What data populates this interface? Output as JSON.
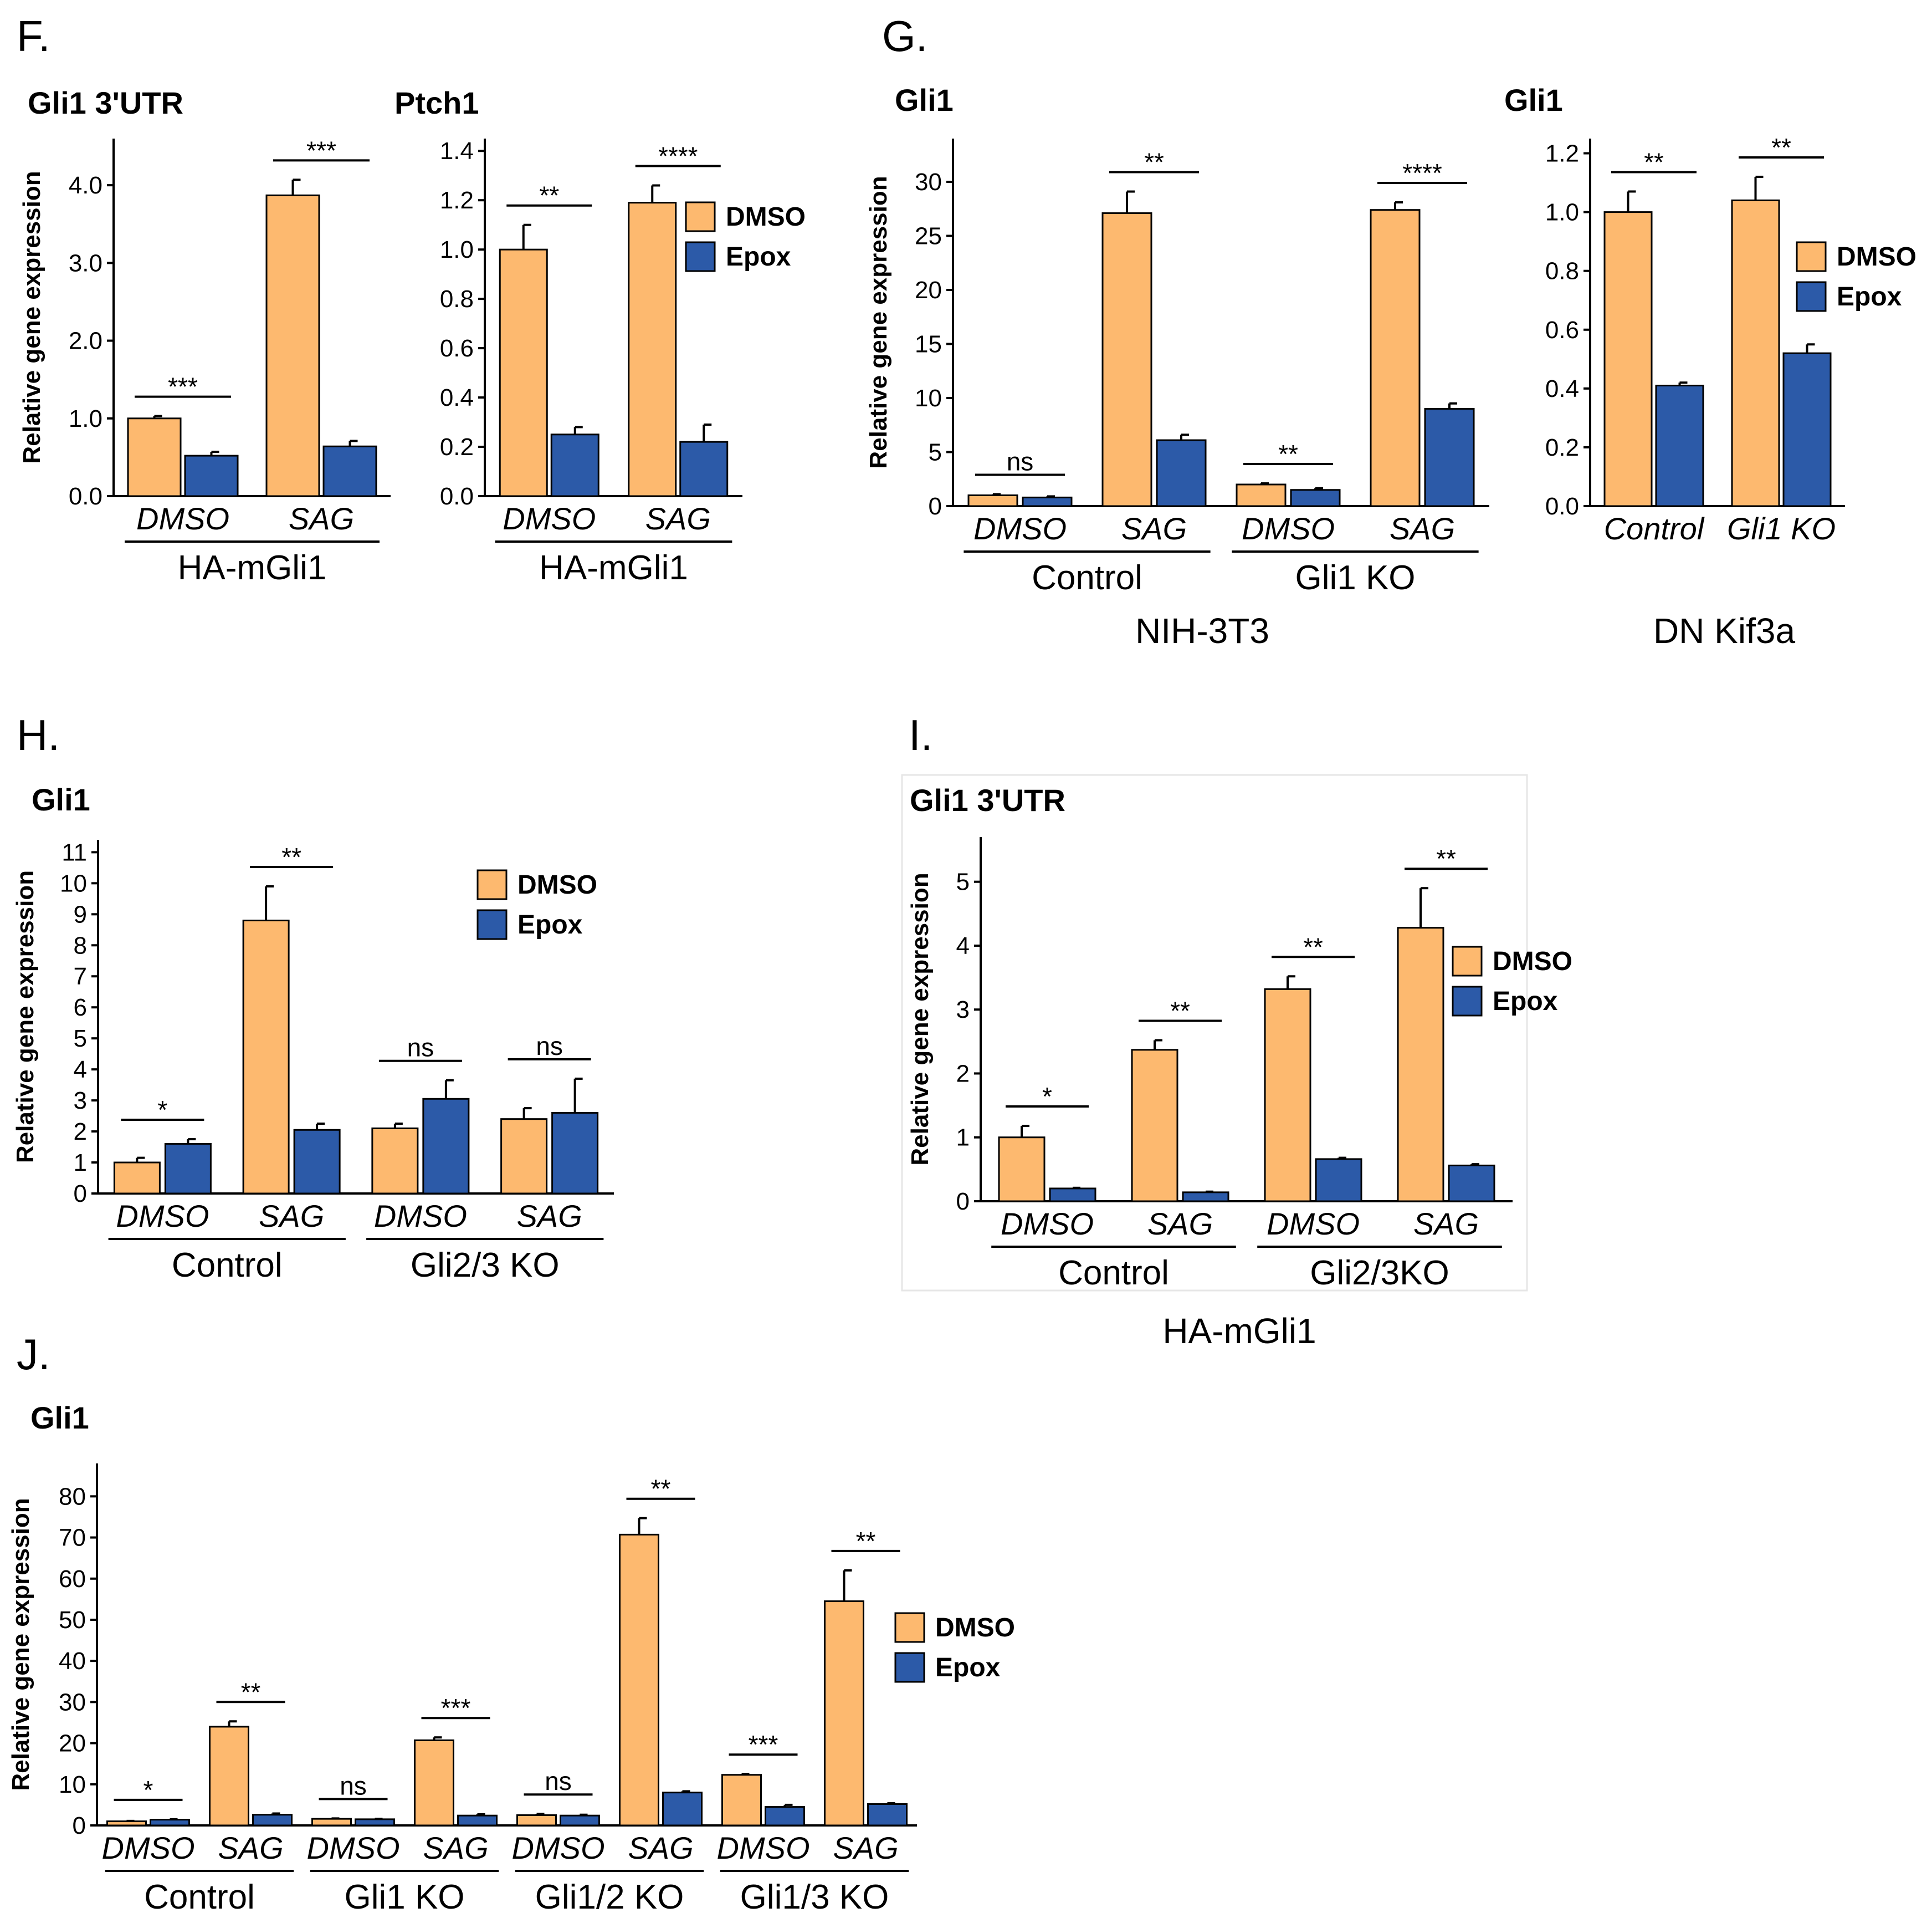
{
  "colors": {
    "dmso": "#fdb96f",
    "epox": "#2c5aa8"
  },
  "panel_letters": [
    "F.",
    "G.",
    "H.",
    "I.",
    "J."
  ],
  "bottom_labels": [
    "NIH-3T3",
    "DN Kif3a",
    "HA-mGli1"
  ],
  "chart_data": [
    {
      "type": "bar",
      "panel": "F",
      "title": "Gli1 3'UTR",
      "ylabel": "Relative gene expression",
      "ylim": [
        0,
        4.6
      ],
      "yticks": [
        "0.0",
        "1.0",
        "2.0",
        "3.0",
        "4.0"
      ],
      "ytick_values": [
        0,
        1,
        2,
        3,
        4
      ],
      "categories": [
        "DMSO",
        "SAG"
      ],
      "groups": [
        {
          "label": "HA-mGli1",
          "span": [
            0,
            1
          ]
        }
      ],
      "series": [
        {
          "name": "DMSO",
          "values": [
            1.0,
            3.87
          ],
          "errors": [
            0.03,
            0.2
          ]
        },
        {
          "name": "Epox",
          "values": [
            0.52,
            0.64
          ],
          "errors": [
            0.05,
            0.07
          ]
        }
      ],
      "significance": [
        "***",
        "***"
      ],
      "legend": []
    },
    {
      "type": "bar",
      "panel": "F",
      "title": "Ptch1",
      "ylabel": "",
      "ylim": [
        0,
        1.45
      ],
      "yticks": [
        "0.0",
        "0.2",
        "0.4",
        "0.6",
        "0.8",
        "1.0",
        "1.2",
        "1.4"
      ],
      "ytick_values": [
        0,
        0.2,
        0.4,
        0.6,
        0.8,
        1.0,
        1.2,
        1.4
      ],
      "categories": [
        "DMSO",
        "SAG"
      ],
      "groups": [
        {
          "label": "HA-mGli1",
          "span": [
            0,
            1
          ]
        }
      ],
      "series": [
        {
          "name": "DMSO",
          "values": [
            1.0,
            1.19
          ],
          "errors": [
            0.1,
            0.07
          ]
        },
        {
          "name": "Epox",
          "values": [
            0.25,
            0.22
          ],
          "errors": [
            0.03,
            0.07
          ]
        }
      ],
      "significance": [
        "**",
        "****"
      ],
      "legend": [
        "DMSO",
        "Epox"
      ]
    },
    {
      "type": "bar",
      "panel": "G",
      "title": "Gli1",
      "ylabel": "Relative gene expression",
      "ylim": [
        0,
        34
      ],
      "yticks": [
        "0",
        "5",
        "10",
        "15",
        "20",
        "25",
        "30"
      ],
      "ytick_values": [
        0,
        5,
        10,
        15,
        20,
        25,
        30
      ],
      "categories": [
        "DMSO",
        "SAG",
        "DMSO",
        "SAG"
      ],
      "groups": [
        {
          "label": "Control",
          "span": [
            0,
            1
          ]
        },
        {
          "label": "Gli1 KO",
          "span": [
            2,
            3
          ]
        }
      ],
      "series": [
        {
          "name": "DMSO",
          "values": [
            1.0,
            27.1,
            2.0,
            27.4
          ],
          "errors": [
            0.1,
            2.0,
            0.1,
            0.7
          ]
        },
        {
          "name": "Epox",
          "values": [
            0.8,
            6.1,
            1.5,
            9.0
          ],
          "errors": [
            0.1,
            0.5,
            0.15,
            0.5
          ]
        }
      ],
      "significance": [
        "ns",
        "**",
        "**",
        "****"
      ],
      "legend": []
    },
    {
      "type": "bar",
      "panel": "G",
      "title": "Gli1",
      "ylabel": "",
      "ylim": [
        0,
        1.25
      ],
      "yticks": [
        "0.0",
        "0.2",
        "0.4",
        "0.6",
        "0.8",
        "1.0",
        "1.2"
      ],
      "ytick_values": [
        0,
        0.2,
        0.4,
        0.6,
        0.8,
        1.0,
        1.2
      ],
      "categories": [
        "Control",
        "Gli1 KO"
      ],
      "groups": [],
      "series": [
        {
          "name": "DMSO",
          "values": [
            1.0,
            1.04
          ],
          "errors": [
            0.07,
            0.08
          ]
        },
        {
          "name": "Epox",
          "values": [
            0.41,
            0.52
          ],
          "errors": [
            0.01,
            0.03
          ]
        }
      ],
      "significance": [
        "**",
        "**"
      ],
      "legend": [
        "DMSO",
        "Epox"
      ]
    },
    {
      "type": "bar",
      "panel": "H",
      "title": "Gli1",
      "ylabel": "Relative gene expression",
      "ylim": [
        0,
        11.4
      ],
      "yticks": [
        "0",
        "1",
        "2",
        "3",
        "4",
        "5",
        "6",
        "7",
        "8",
        "9",
        "10",
        "11"
      ],
      "ytick_values": [
        0,
        1,
        2,
        3,
        4,
        5,
        6,
        7,
        8,
        9,
        10,
        11
      ],
      "categories": [
        "DMSO",
        "SAG",
        "DMSO",
        "SAG"
      ],
      "groups": [
        {
          "label": "Control",
          "span": [
            0,
            1
          ]
        },
        {
          "label": "Gli2/3 KO",
          "span": [
            2,
            3
          ]
        }
      ],
      "series": [
        {
          "name": "DMSO",
          "values": [
            1.0,
            8.8,
            2.1,
            2.4
          ],
          "errors": [
            0.15,
            1.1,
            0.15,
            0.35
          ]
        },
        {
          "name": "Epox",
          "values": [
            1.6,
            2.05,
            3.05,
            2.6
          ],
          "errors": [
            0.15,
            0.2,
            0.6,
            1.1
          ]
        }
      ],
      "significance": [
        "*",
        "**",
        "ns",
        "ns"
      ],
      "legend": [
        "DMSO",
        "Epox"
      ]
    },
    {
      "type": "bar",
      "panel": "I",
      "title": "Gli1 3'UTR",
      "ylabel": "Relative gene expression",
      "ylim": [
        0,
        5.7
      ],
      "yticks": [
        "0",
        "1",
        "2",
        "3",
        "4",
        "5"
      ],
      "ytick_values": [
        0,
        1,
        2,
        3,
        4,
        5
      ],
      "categories": [
        "DMSO",
        "SAG",
        "DMSO",
        "SAG"
      ],
      "groups": [
        {
          "label": "Control",
          "span": [
            0,
            1
          ]
        },
        {
          "label": "Gli2/3KO",
          "span": [
            2,
            3
          ]
        }
      ],
      "series": [
        {
          "name": "DMSO",
          "values": [
            1.0,
            2.37,
            3.32,
            4.28
          ],
          "errors": [
            0.18,
            0.15,
            0.2,
            0.62
          ]
        },
        {
          "name": "Epox",
          "values": [
            0.2,
            0.14,
            0.66,
            0.56
          ],
          "errors": [
            0.01,
            0.01,
            0.02,
            0.02
          ]
        }
      ],
      "significance": [
        "*",
        "**",
        "**",
        "**"
      ],
      "legend": [
        "DMSO",
        "Epox"
      ]
    },
    {
      "type": "bar",
      "panel": "J",
      "title": "Gli1",
      "ylabel": "Relative gene expression",
      "ylim": [
        0,
        88
      ],
      "yticks": [
        "0",
        "10",
        "20",
        "30",
        "40",
        "50",
        "60",
        "70",
        "80"
      ],
      "ytick_values": [
        0,
        10,
        20,
        30,
        40,
        50,
        60,
        70,
        80
      ],
      "categories": [
        "DMSO",
        "SAG",
        "DMSO",
        "SAG",
        "DMSO",
        "SAG",
        "DMSO",
        "SAG"
      ],
      "groups": [
        {
          "label": "Control",
          "span": [
            0,
            1
          ]
        },
        {
          "label": "Gli1 KO",
          "span": [
            2,
            3
          ]
        },
        {
          "label": "Gli1/2 KO",
          "span": [
            4,
            5
          ]
        },
        {
          "label": "Gli1/3 KO",
          "span": [
            6,
            7
          ]
        }
      ],
      "series": [
        {
          "name": "DMSO",
          "values": [
            1.0,
            24.0,
            1.6,
            20.7,
            2.5,
            70.7,
            12.3,
            54.5
          ],
          "errors": [
            0.1,
            1.3,
            0.1,
            0.7,
            0.3,
            4.0,
            0.2,
            7.5
          ]
        },
        {
          "name": "Epox",
          "values": [
            1.4,
            2.6,
            1.5,
            2.4,
            2.4,
            8.0,
            4.5,
            5.2
          ],
          "errors": [
            0.1,
            0.3,
            0.1,
            0.3,
            0.2,
            0.3,
            0.5,
            0.2
          ]
        }
      ],
      "significance": [
        "*",
        "**",
        "ns",
        "***",
        "ns",
        "**",
        "***",
        "**"
      ],
      "legend": [
        "DMSO",
        "Epox"
      ]
    }
  ]
}
